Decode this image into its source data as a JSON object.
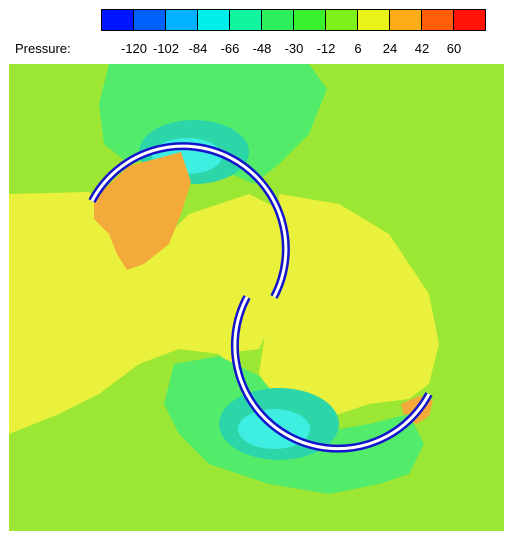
{
  "legend": {
    "title": "Pressure:",
    "ticks": [
      "-120",
      "-102",
      "-84",
      "-66",
      "-48",
      "-30",
      "-12",
      "6",
      "24",
      "42",
      "60"
    ],
    "colors": [
      "#0015ff",
      "#0061ff",
      "#00b2ff",
      "#00eeea",
      "#11f5a0",
      "#2df05c",
      "#37f12d",
      "#7cf11a",
      "#e8f41a",
      "#ffac19",
      "#ff5d0a",
      "#ff1208"
    ]
  },
  "field_colors": {
    "background": "#9be734",
    "high": "#ecf139",
    "peak": "#f3aa3a",
    "low": "#44e878",
    "lower": "#2dd1a8",
    "lowest": "#3eeee0",
    "blade_outline": "#1414cc",
    "blade_fill": "#ffffff"
  }
}
